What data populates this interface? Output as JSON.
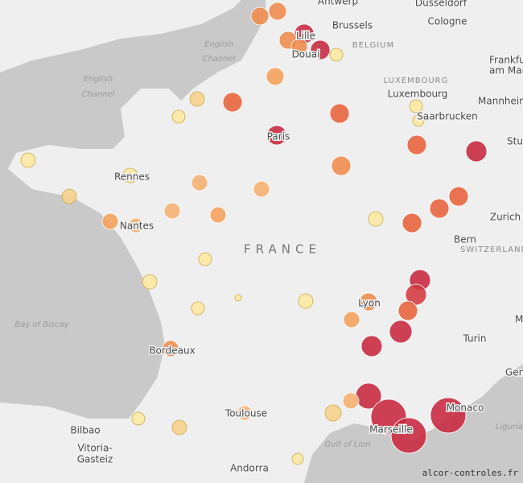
{
  "labels": [
    "Antwerp",
    "Düsseldorf",
    "Brussels",
    "Cologne",
    "Lille",
    "Douai",
    "BELGIUM",
    "Frankfurt",
    "am Main",
    "LUXEMBOURG",
    "Luxembourg",
    "Mannheim",
    "Saarbrucken",
    "Stuttgart",
    "Paris",
    "Rennes",
    "Nantes",
    "FRANCE",
    "Zurich",
    "Bern",
    "SWITZERLAND",
    "Lyon",
    "Turin",
    "M",
    "Bordeaux",
    "Gen",
    "Toulouse",
    "Monaco",
    "Marseille",
    "Bilbao",
    "Vitoria-",
    "Gasteiz",
    "Andorra",
    "English",
    "Channel",
    "English",
    "Channel",
    "Bay of Biscay",
    "Gulf of Lion",
    "Ligurian",
    "alcor-controles.fr"
  ]
}
